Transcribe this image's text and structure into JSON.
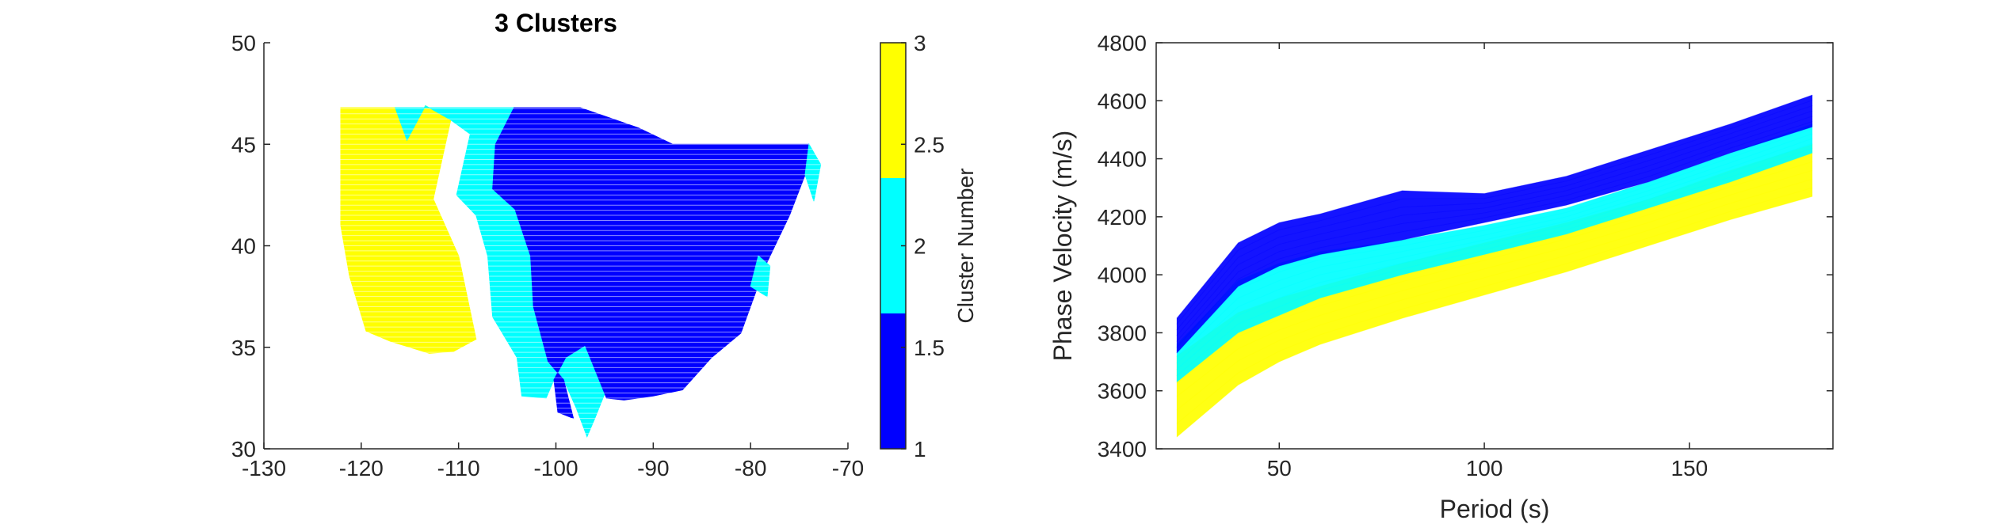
{
  "colors": {
    "cluster1": "#0000ff",
    "cluster2": "#00ffff",
    "cluster3": "#ffff00",
    "axis": "#262626"
  },
  "chart_data": [
    {
      "type": "scatter",
      "title": "3 Clusters",
      "xlabel": "",
      "ylabel": "",
      "xlim": [
        -130,
        -70
      ],
      "ylim": [
        30,
        50
      ],
      "xticks": [
        "-130",
        "-120",
        "-110",
        "-100",
        "-90",
        "-80",
        "-70"
      ],
      "yticks": [
        "30",
        "35",
        "40",
        "45",
        "50"
      ],
      "grid": false,
      "colorbar": {
        "label": "Cluster Number",
        "range": [
          1,
          3
        ],
        "ticks": [
          "1",
          "1.5",
          "2",
          "2.5",
          "3"
        ],
        "levels": [
          {
            "value": 1,
            "color": "#0000ff"
          },
          {
            "value": 2,
            "color": "#00ffff"
          },
          {
            "value": 3,
            "color": "#ffff00"
          }
        ]
      },
      "regions": [
        {
          "cluster": 3,
          "color": "#ffff00",
          "outline": [
            [
              -122.1,
              46.8
            ],
            [
              -116.5,
              46.8
            ],
            [
              -115.3,
              45.2
            ],
            [
              -113.4,
              46.9
            ],
            [
              -110.8,
              46.2
            ],
            [
              -112.6,
              42.3
            ],
            [
              -110.0,
              39.5
            ],
            [
              -108.2,
              35.4
            ],
            [
              -110.5,
              34.8
            ],
            [
              -113.0,
              34.7
            ],
            [
              -117.0,
              35.3
            ],
            [
              -119.5,
              35.8
            ],
            [
              -121.2,
              38.5
            ],
            [
              -122.1,
              41.0
            ]
          ]
        },
        {
          "cluster": 2,
          "color": "#00ffff",
          "outline": [
            [
              -116.5,
              46.8
            ],
            [
              -104.3,
              46.8
            ],
            [
              -106.2,
              45.0
            ],
            [
              -106.5,
              42.8
            ],
            [
              -104.2,
              41.8
            ],
            [
              -102.6,
              39.5
            ],
            [
              -102.3,
              37.0
            ],
            [
              -100.8,
              34.3
            ],
            [
              -99.2,
              33.4
            ],
            [
              -97.9,
              32.0
            ],
            [
              -96.8,
              30.6
            ],
            [
              -96.0,
              31.5
            ],
            [
              -94.5,
              33.3
            ],
            [
              -93.2,
              34.2
            ],
            [
              -92.5,
              33.0
            ],
            [
              -94.8,
              32.5
            ],
            [
              -97.0,
              35.1
            ],
            [
              -99.0,
              34.5
            ],
            [
              -100.2,
              33.4
            ],
            [
              -101.0,
              32.5
            ],
            [
              -103.5,
              32.6
            ],
            [
              -104.0,
              34.5
            ],
            [
              -106.5,
              36.5
            ],
            [
              -107.0,
              39.5
            ],
            [
              -108.2,
              41.5
            ],
            [
              -110.2,
              42.5
            ],
            [
              -108.8,
              45.5
            ],
            [
              -110.8,
              46.2
            ],
            [
              -113.4,
              46.9
            ],
            [
              -115.3,
              45.2
            ]
          ]
        },
        {
          "cluster": 1,
          "color": "#0000ff",
          "outline": [
            [
              -104.3,
              46.8
            ],
            [
              -97.5,
              46.8
            ],
            [
              -91.5,
              45.8
            ],
            [
              -88.0,
              45.0
            ],
            [
              -74.0,
              45.0
            ],
            [
              -74.4,
              43.5
            ],
            [
              -76.0,
              41.5
            ],
            [
              -78.5,
              39.0
            ],
            [
              -81.0,
              35.7
            ],
            [
              -84.0,
              34.5
            ],
            [
              -87.0,
              32.9
            ],
            [
              -90.0,
              32.6
            ],
            [
              -93.0,
              32.4
            ],
            [
              -94.8,
              32.5
            ],
            [
              -97.0,
              35.1
            ],
            [
              -99.0,
              34.5
            ],
            [
              -100.2,
              33.4
            ],
            [
              -99.8,
              31.8
            ],
            [
              -98.2,
              31.5
            ],
            [
              -99.2,
              33.4
            ],
            [
              -100.8,
              34.3
            ],
            [
              -102.3,
              37.0
            ],
            [
              -102.6,
              39.5
            ],
            [
              -104.2,
              41.8
            ],
            [
              -106.5,
              42.8
            ],
            [
              -106.2,
              45.0
            ]
          ]
        },
        {
          "cluster": 2,
          "color": "#00ffff",
          "outline": [
            [
              -74.0,
              45.0
            ],
            [
              -72.8,
              44.0
            ],
            [
              -73.5,
              42.2
            ],
            [
              -74.4,
              43.5
            ]
          ]
        },
        {
          "cluster": 2,
          "color": "#00ffff",
          "outline": [
            [
              -80.0,
              38.0
            ],
            [
              -79.2,
              39.5
            ],
            [
              -78.0,
              39.0
            ],
            [
              -78.3,
              37.5
            ]
          ]
        }
      ]
    },
    {
      "type": "line",
      "title": "",
      "xlabel": "Period (s)",
      "ylabel": "Phase Velocity (m/s)",
      "xlim": [
        20,
        185
      ],
      "ylim": [
        3400,
        4800
      ],
      "xticks": [
        "50",
        "100",
        "150"
      ],
      "yticks": [
        "3400",
        "3600",
        "3800",
        "4000",
        "4200",
        "4400",
        "4600",
        "4800"
      ],
      "grid": false,
      "x": [
        25,
        40,
        50,
        60,
        80,
        100,
        120,
        140,
        160,
        180
      ],
      "series": [
        {
          "cluster": 1,
          "color": "#0000ff",
          "upper": [
            3850,
            4110,
            4180,
            4210,
            4290,
            4280,
            4340,
            4430,
            4520,
            4620
          ],
          "lower": [
            3730,
            3960,
            4030,
            4070,
            4120,
            4180,
            4240,
            4320,
            4420,
            4510
          ]
        },
        {
          "cluster": 2,
          "color": "#00ffff",
          "upper": [
            3760,
            3980,
            4040,
            4080,
            4120,
            4170,
            4230,
            4320,
            4420,
            4520
          ],
          "lower": [
            3630,
            3800,
            3860,
            3920,
            4000,
            4070,
            4140,
            4230,
            4320,
            4420
          ]
        },
        {
          "cluster": 3,
          "color": "#ffff00",
          "upper": [
            3720,
            3870,
            3920,
            3960,
            4040,
            4110,
            4180,
            4260,
            4360,
            4450
          ],
          "lower": [
            3440,
            3620,
            3700,
            3760,
            3850,
            3930,
            4010,
            4100,
            4190,
            4270
          ]
        }
      ]
    }
  ]
}
